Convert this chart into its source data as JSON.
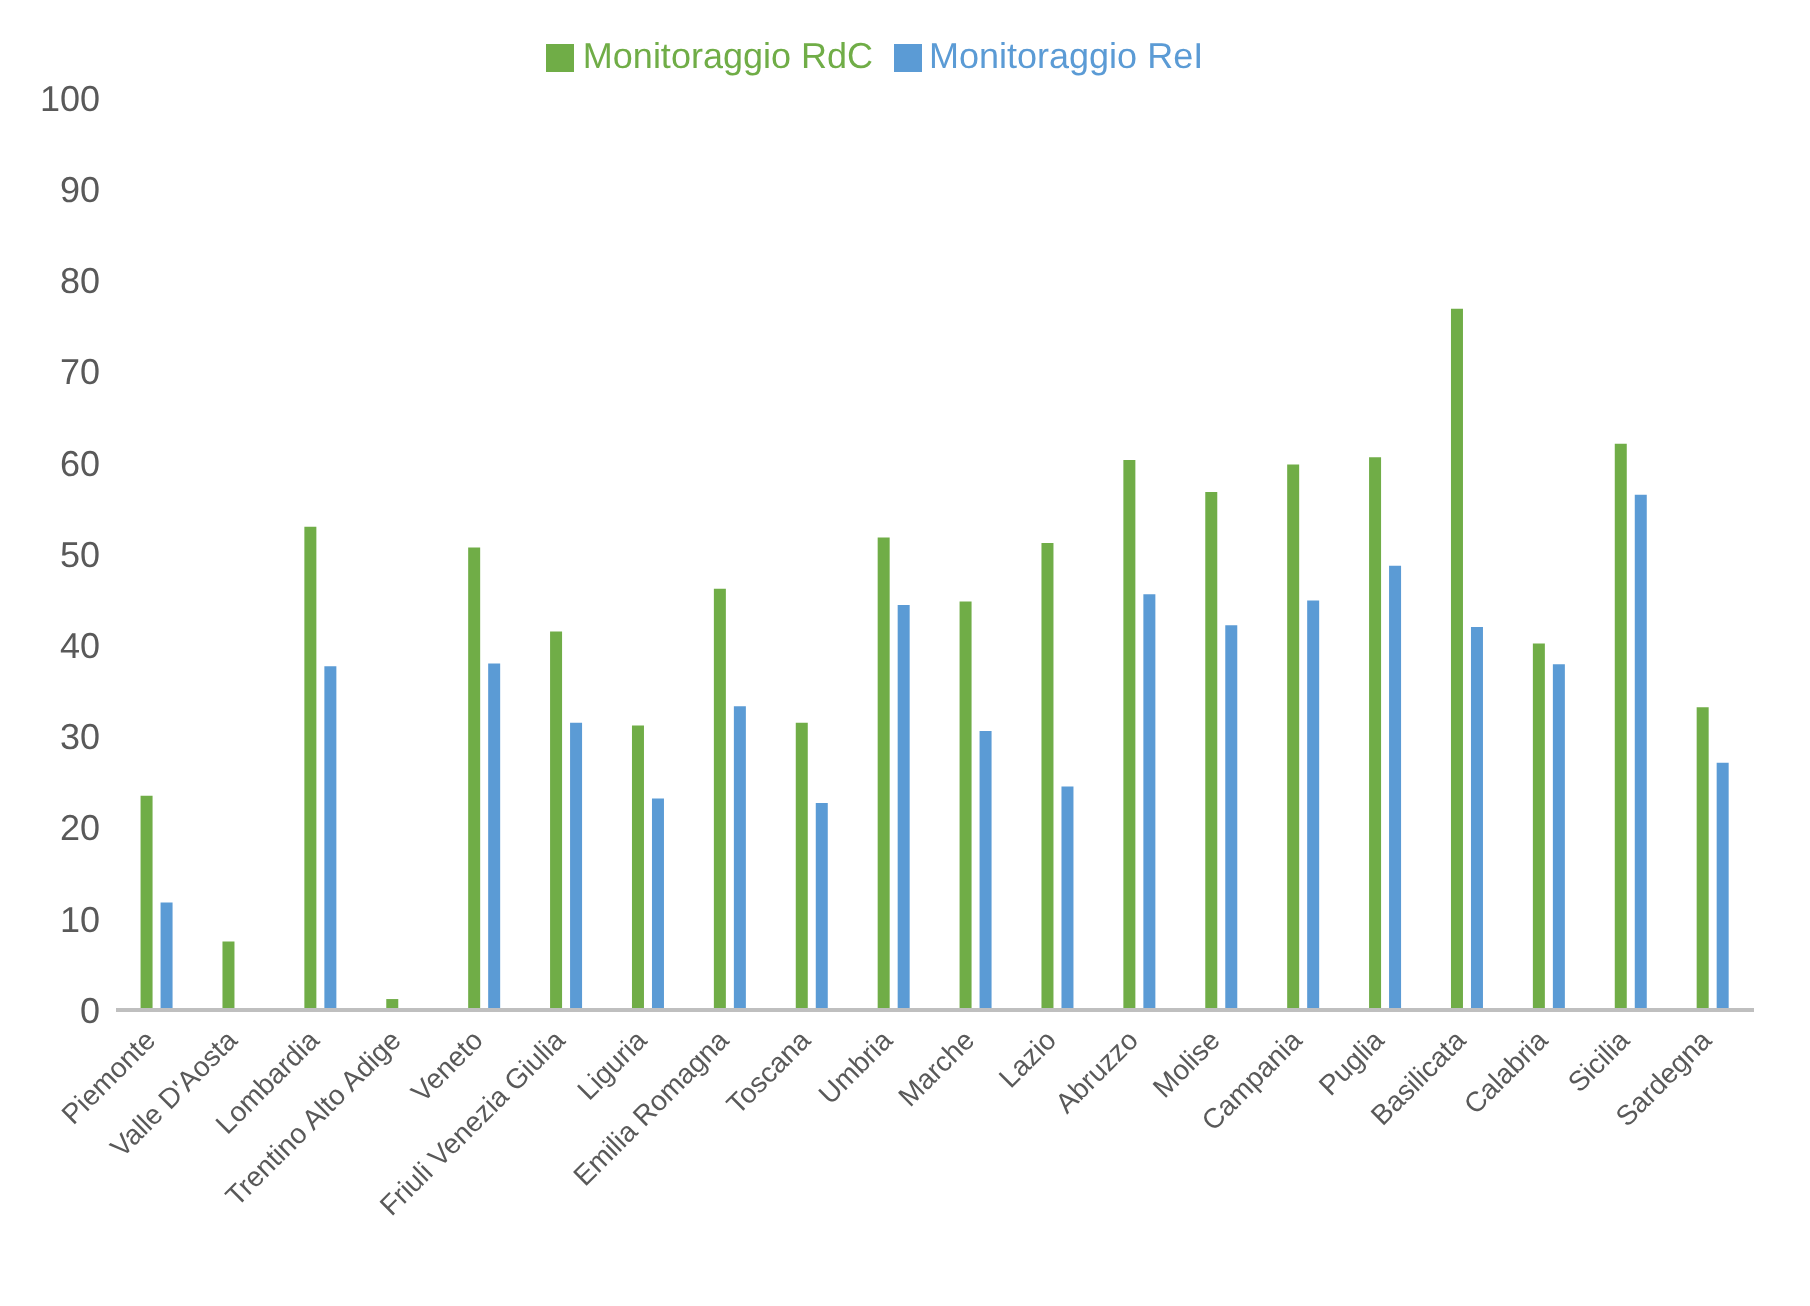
{
  "chart_data": {
    "type": "bar",
    "categories": [
      "Piemonte",
      "Valle D'Aosta",
      "Lombardia",
      "Trentino Alto Adige",
      "Veneto",
      "Friuli Venezia Giulia",
      "Liguria",
      "Emilia Romagna",
      "Toscana",
      "Umbria",
      "Marche",
      "Lazio",
      "Abruzzo",
      "Molise",
      "Campania",
      "Puglia",
      "Basilicata",
      "Calabria",
      "Sicilia",
      "Sardegna"
    ],
    "series": [
      {
        "name": "Monitoraggio RdC",
        "color": "#70ad47",
        "values": [
          23.5,
          7.5,
          53,
          1.2,
          50.7,
          41.5,
          31.2,
          46.2,
          31.5,
          51.8,
          44.8,
          51.2,
          60.3,
          56.8,
          59.8,
          60.6,
          76.9,
          40.2,
          62.1,
          33.2
        ]
      },
      {
        "name": "Monitoraggio ReI",
        "color": "#5b9bd5",
        "values": [
          11.8,
          null,
          37.7,
          null,
          38,
          31.5,
          23.2,
          33.3,
          22.7,
          44.4,
          30.6,
          24.5,
          45.6,
          42.2,
          44.9,
          48.7,
          42,
          37.9,
          56.5,
          27.1
        ]
      }
    ],
    "ylim": [
      0,
      100
    ],
    "yticks": [
      0,
      10,
      20,
      30,
      40,
      50,
      60,
      70,
      80,
      90,
      100
    ],
    "grid": false,
    "legend": "top"
  }
}
